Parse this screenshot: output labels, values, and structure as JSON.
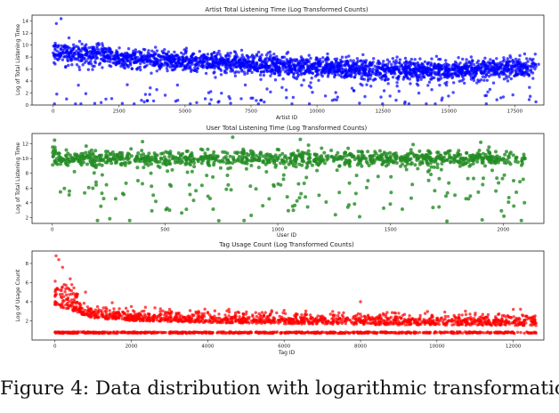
{
  "caption": "Figure 4: Data distribution with logarithmic transformation",
  "chart_data": [
    {
      "type": "scatter",
      "title": "Artist Total Listening Time (Log Transformed Counts)",
      "xlabel": "Artist ID",
      "ylabel": "Log of Total Listening Time",
      "xlim": [
        -800,
        18600
      ],
      "ylim": [
        0,
        15
      ],
      "xticks": [
        0,
        2500,
        5000,
        7500,
        10000,
        12500,
        15000,
        17500
      ],
      "yticks": [
        0,
        2,
        4,
        6,
        8,
        10,
        12,
        14
      ],
      "color": "#0000ff",
      "sampled_points": [
        [
          0,
          8.7
        ],
        [
          120,
          13.6
        ],
        [
          300,
          14.4
        ],
        [
          600,
          11.2
        ],
        [
          1200,
          9.8
        ],
        [
          2500,
          8.3
        ],
        [
          3600,
          7.9
        ],
        [
          5000,
          7.4
        ],
        [
          6500,
          7.0
        ],
        [
          7500,
          6.8
        ],
        [
          9000,
          6.5
        ],
        [
          10000,
          6.3
        ],
        [
          11500,
          6.1
        ],
        [
          12500,
          5.9
        ],
        [
          14000,
          5.8
        ],
        [
          15000,
          5.7
        ],
        [
          16500,
          6.0
        ],
        [
          17500,
          6.5
        ],
        [
          18400,
          6.8
        ],
        [
          2000,
          1.0
        ],
        [
          8000,
          0.5
        ],
        [
          13000,
          0.8
        ]
      ],
      "trend": [
        [
          0,
          8.8
        ],
        [
          2500,
          8.0
        ],
        [
          5000,
          7.3
        ],
        [
          7500,
          6.8
        ],
        [
          10000,
          6.3
        ],
        [
          12500,
          5.8
        ],
        [
          15000,
          5.7
        ],
        [
          17500,
          6.2
        ],
        [
          18600,
          6.6
        ]
      ]
    },
    {
      "type": "scatter",
      "title": "User Total Listening Time (Log Transformed Counts)",
      "xlabel": "User ID",
      "ylabel": "Log of Total Listening Time",
      "xlim": [
        -90,
        2180
      ],
      "ylim": [
        1.2,
        13.4
      ],
      "xticks": [
        0,
        500,
        1000,
        1500,
        2000
      ],
      "yticks": [
        2,
        4,
        6,
        8,
        10,
        12
      ],
      "color": "#228b22",
      "sampled_points": [
        [
          10,
          12.5
        ],
        [
          50,
          9.8
        ],
        [
          100,
          10.6
        ],
        [
          150,
          11.7
        ],
        [
          200,
          1.6
        ],
        [
          300,
          10.2
        ],
        [
          400,
          12.3
        ],
        [
          500,
          9.5
        ],
        [
          600,
          11.0
        ],
        [
          700,
          10.4
        ],
        [
          800,
          12.9
        ],
        [
          900,
          9.9
        ],
        [
          1000,
          10.1
        ],
        [
          1100,
          12.6
        ],
        [
          1200,
          9.7
        ],
        [
          1300,
          10.8
        ],
        [
          1400,
          7.0
        ],
        [
          1500,
          10.3
        ],
        [
          1600,
          11.9
        ],
        [
          1700,
          9.6
        ],
        [
          1750,
          1.5
        ],
        [
          1800,
          10.5
        ],
        [
          1900,
          12.2
        ],
        [
          2000,
          10.0
        ],
        [
          2080,
          1.6
        ]
      ],
      "trend": [
        [
          0,
          10.0
        ],
        [
          2100,
          10.0
        ]
      ]
    },
    {
      "type": "scatter",
      "title": "Tag Usage Count (Log Transformed Counts)",
      "xlabel": "Tag ID",
      "ylabel": "Log of Usage Count",
      "xlim": [
        -600,
        12800
      ],
      "ylim": [
        0,
        9.3
      ],
      "xticks": [
        0,
        2000,
        4000,
        6000,
        8000,
        10000,
        12000
      ],
      "yticks": [
        2,
        4,
        6,
        8
      ],
      "color": "#ff0000",
      "sampled_points": [
        [
          30,
          8.8
        ],
        [
          100,
          8.4
        ],
        [
          200,
          7.6
        ],
        [
          400,
          6.4
        ],
        [
          800,
          5.0
        ],
        [
          1500,
          3.9
        ],
        [
          2000,
          3.5
        ],
        [
          3000,
          3.2
        ],
        [
          4000,
          2.9
        ],
        [
          5000,
          2.7
        ],
        [
          6000,
          3.1
        ],
        [
          7000,
          2.5
        ],
        [
          8000,
          4.0
        ],
        [
          9000,
          2.8
        ],
        [
          10000,
          2.3
        ],
        [
          11000,
          2.6
        ],
        [
          12000,
          3.2
        ],
        [
          12500,
          2.1
        ],
        [
          3000,
          0.7
        ],
        [
          9000,
          0.7
        ]
      ],
      "trend": [
        [
          0,
          3.6
        ],
        [
          1000,
          2.3
        ],
        [
          2000,
          2.0
        ],
        [
          4000,
          1.8
        ],
        [
          8000,
          1.6
        ],
        [
          12600,
          1.5
        ]
      ]
    }
  ]
}
